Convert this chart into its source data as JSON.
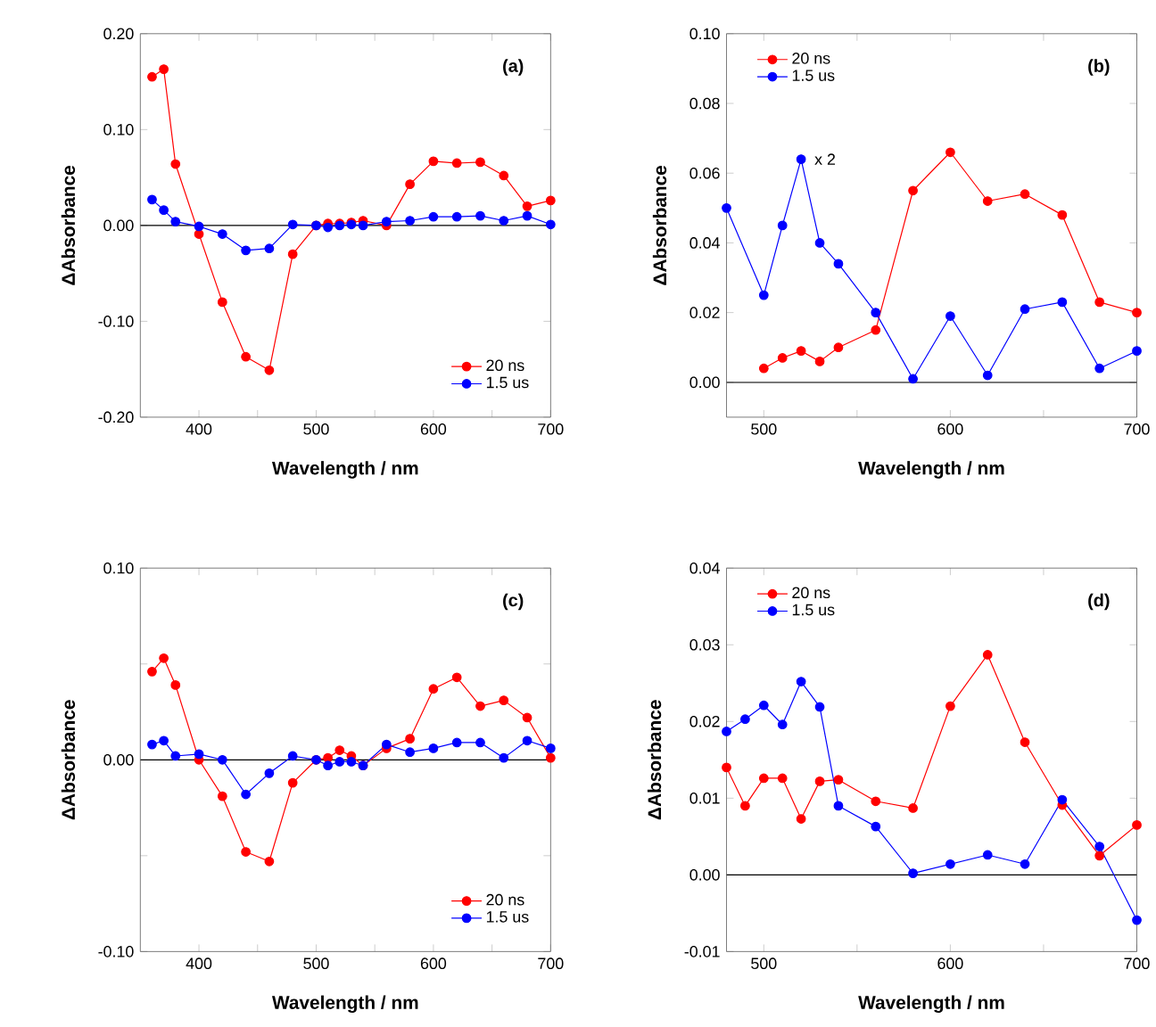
{
  "chart_data": [
    {
      "type": "line",
      "annotations": [
        "(a)"
      ],
      "xlabel": "Wavelength / nm",
      "ylabel": "ΔAbsorbance",
      "xlim": [
        350,
        700
      ],
      "ylim": [
        -0.2,
        0.2
      ],
      "xticks": [
        400,
        {
          "value": 450,
          "label": null
        },
        500,
        {
          "value": 550,
          "label": null
        },
        600,
        {
          "value": 650,
          "label": null
        },
        700
      ],
      "yticks": [
        {
          "value": -0.2,
          "label": "-0.20"
        },
        {
          "value": -0.1,
          "label": "-0.10"
        },
        {
          "value": 0,
          "label": "0.00"
        },
        {
          "value": 0.1,
          "label": "0.10"
        },
        {
          "value": 0.2,
          "label": "0.20"
        }
      ],
      "x": [
        360,
        370,
        380,
        400,
        420,
        440,
        460,
        480,
        500,
        510,
        520,
        530,
        540,
        560,
        580,
        600,
        620,
        640,
        660,
        680,
        700
      ],
      "series": [
        {
          "name": "20 ns",
          "color": "#ff0000",
          "values": [
            0.155,
            0.163,
            0.064,
            -0.009,
            -0.08,
            -0.137,
            -0.151,
            -0.03,
            0.0,
            0.002,
            0.002,
            0.003,
            0.005,
            0.0,
            0.043,
            0.067,
            0.065,
            0.066,
            0.052,
            0.02,
            0.026
          ]
        },
        {
          "name": "1.5 us",
          "color": "#0000ff",
          "values": [
            0.027,
            0.016,
            0.004,
            -0.001,
            -0.009,
            -0.026,
            -0.024,
            0.001,
            0.0,
            -0.002,
            0.0,
            0.001,
            0.0,
            0.004,
            0.005,
            0.009,
            0.009,
            0.01,
            0.005,
            0.01,
            0.001
          ]
        }
      ],
      "ref_lines": [
        {
          "axis": "y",
          "value": 0
        }
      ],
      "legend": "bottom right",
      "marker": "circle",
      "grid": false
    },
    {
      "type": "line",
      "annotations": [
        "(b)",
        {
          "text": "x 2",
          "x": 520,
          "y": 0.064
        }
      ],
      "xlabel": "Wavelength / nm",
      "ylabel": "ΔAbsorbance",
      "xlim": [
        480,
        700
      ],
      "ylim": [
        -0.01,
        0.1
      ],
      "xticks": [
        500,
        {
          "value": 550,
          "label": null
        },
        600,
        {
          "value": 650,
          "label": null
        },
        700
      ],
      "yticks": [
        {
          "value": 0,
          "label": "0.00"
        },
        {
          "value": 0.02,
          "label": "0.02"
        },
        {
          "value": 0.04,
          "label": "0.04"
        },
        {
          "value": 0.06,
          "label": "0.06"
        },
        {
          "value": 0.08,
          "label": "0.08"
        },
        {
          "value": 0.1,
          "label": "0.10"
        }
      ],
      "x": [
        480,
        500,
        510,
        520,
        530,
        540,
        560,
        580,
        600,
        620,
        640,
        660,
        680,
        700
      ],
      "series": [
        {
          "name": "20 ns",
          "color": "#ff0000",
          "values": [
            null,
            0.004,
            0.007,
            0.009,
            0.006,
            0.01,
            0.015,
            0.055,
            0.066,
            0.052,
            0.054,
            0.048,
            0.023,
            0.02
          ]
        },
        {
          "name": "1.5 us",
          "color": "#0000ff",
          "values": [
            0.05,
            0.025,
            0.045,
            0.064,
            0.04,
            0.034,
            0.02,
            0.001,
            0.019,
            0.002,
            0.021,
            0.023,
            0.004,
            0.009
          ]
        }
      ],
      "ref_lines": [
        {
          "axis": "y",
          "value": 0
        }
      ],
      "legend": "top left",
      "marker": "circle",
      "grid": false
    },
    {
      "type": "line",
      "annotations": [
        "(c)"
      ],
      "xlabel": "Wavelength / nm",
      "ylabel": "ΔAbsorbance",
      "xlim": [
        350,
        700
      ],
      "ylim": [
        -0.1,
        0.1
      ],
      "xticks": [
        400,
        {
          "value": 450,
          "label": null
        },
        500,
        {
          "value": 550,
          "label": null
        },
        600,
        {
          "value": 650,
          "label": null
        },
        700
      ],
      "yticks": [
        {
          "value": -0.1,
          "label": "-0.10"
        },
        {
          "value": -0.05,
          "label": null
        },
        {
          "value": 0,
          "label": "0.00"
        },
        {
          "value": 0.05,
          "label": null
        },
        {
          "value": 0.1,
          "label": "0.10"
        }
      ],
      "x": [
        360,
        370,
        380,
        400,
        420,
        440,
        460,
        480,
        500,
        510,
        520,
        530,
        540,
        560,
        580,
        600,
        620,
        640,
        660,
        680,
        700
      ],
      "series": [
        {
          "name": "20 ns",
          "color": "#ff0000",
          "values": [
            0.046,
            0.053,
            0.039,
            0.0,
            -0.019,
            -0.048,
            -0.053,
            -0.012,
            0.0,
            0.001,
            0.005,
            0.002,
            -0.003,
            0.006,
            0.011,
            0.037,
            0.043,
            0.028,
            0.031,
            0.022,
            0.001
          ]
        },
        {
          "name": "1.5 us",
          "color": "#0000ff",
          "values": [
            0.008,
            0.01,
            0.002,
            0.003,
            0.0,
            -0.018,
            -0.007,
            0.002,
            0.0,
            -0.003,
            -0.001,
            -0.001,
            -0.003,
            0.008,
            0.004,
            0.006,
            0.009,
            0.009,
            0.001,
            0.01,
            0.006
          ]
        }
      ],
      "ref_lines": [
        {
          "axis": "y",
          "value": 0
        }
      ],
      "legend": "bottom right",
      "marker": "circle",
      "grid": false
    },
    {
      "type": "line",
      "annotations": [
        "(d)"
      ],
      "xlabel": "Wavelength / nm",
      "ylabel": "ΔAbsorbance",
      "xlim": [
        480,
        700
      ],
      "ylim": [
        -0.01,
        0.04
      ],
      "xticks": [
        500,
        {
          "value": 550,
          "label": null
        },
        600,
        {
          "value": 650,
          "label": null
        },
        700
      ],
      "yticks": [
        {
          "value": -0.01,
          "label": "-0.01"
        },
        {
          "value": 0,
          "label": "0.00"
        },
        {
          "value": 0.01,
          "label": "0.01"
        },
        {
          "value": 0.02,
          "label": "0.02"
        },
        {
          "value": 0.03,
          "label": "0.03"
        },
        {
          "value": 0.04,
          "label": "0.04"
        }
      ],
      "x": [
        480,
        490,
        500,
        510,
        520,
        530,
        540,
        560,
        580,
        600,
        620,
        640,
        660,
        680,
        700
      ],
      "series": [
        {
          "name": "20 ns",
          "color": "#ff0000",
          "values": [
            0.014,
            0.009,
            0.0126,
            0.0126,
            0.0073,
            0.0122,
            0.0124,
            0.0096,
            0.0087,
            0.022,
            0.0287,
            0.0173,
            0.0091,
            0.0025,
            0.0065
          ]
        },
        {
          "name": "1.5 us",
          "color": "#0000ff",
          "values": [
            0.0187,
            0.0203,
            0.0221,
            0.0196,
            0.0252,
            0.0219,
            0.009,
            0.0063,
            0.0002,
            0.0014,
            0.0026,
            0.0014,
            0.0098,
            0.0037,
            -0.0059
          ]
        }
      ],
      "ref_lines": [
        {
          "axis": "y",
          "value": 0
        }
      ],
      "legend": "top left",
      "marker": "circle",
      "grid": false
    }
  ]
}
